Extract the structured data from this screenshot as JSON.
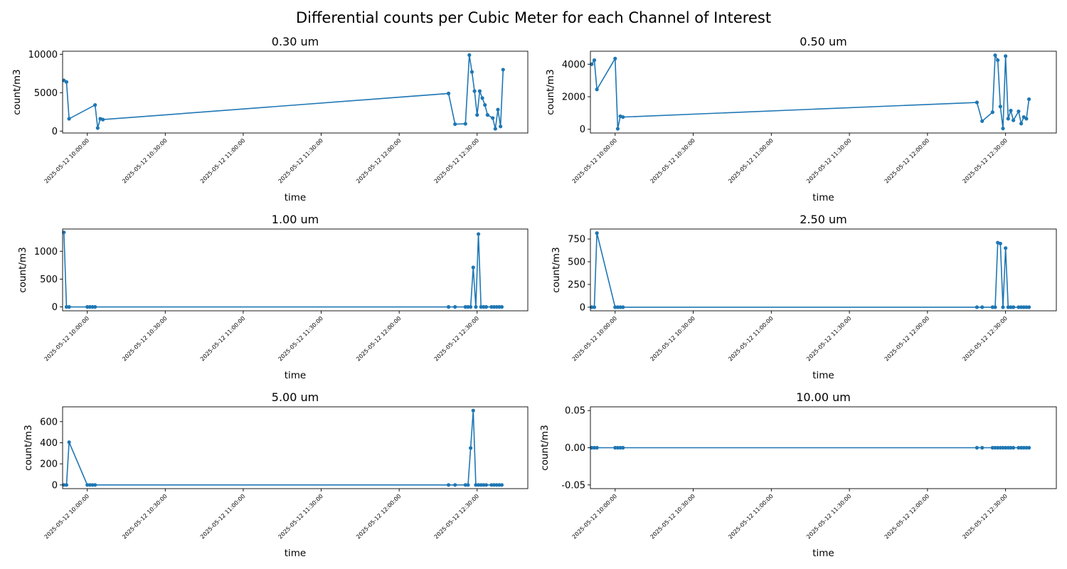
{
  "figure": {
    "suptitle": "Differential counts per Cubic Meter for each Channel of Interest"
  },
  "chart_data": [
    {
      "type": "line",
      "title": "0.30 um",
      "xlabel": "time",
      "ylabel": "count/m3",
      "color": "#1f77b4",
      "marker": "circle",
      "x_ticks": [
        "2025-05-12 10:00:00",
        "2025-05-12 10:30:00",
        "2025-05-12 11:00:00",
        "2025-05-12 11:30:00",
        "2025-05-12 12:00:00",
        "2025-05-12 12:30:00"
      ],
      "xlim": [
        "2025-05-12 09:50:30",
        "2025-05-12 12:49:30"
      ],
      "y_ticks": [
        0,
        5000,
        10000
      ],
      "ylim": [
        -250,
        10400
      ],
      "series": [
        {
          "x": [
            "2025-05-12 09:51:00",
            "2025-05-12 09:52:00",
            "2025-05-12 09:53:00",
            "2025-05-12 10:03:00",
            "2025-05-12 10:04:00",
            "2025-05-12 10:05:00",
            "2025-05-12 10:06:00",
            "2025-05-12 12:19:00",
            "2025-05-12 12:21:30",
            "2025-05-12 12:25:30",
            "2025-05-12 12:27:00",
            "2025-05-12 12:28:00",
            "2025-05-12 12:29:00",
            "2025-05-12 12:30:00",
            "2025-05-12 12:31:00",
            "2025-05-12 12:32:00",
            "2025-05-12 12:33:00",
            "2025-05-12 12:34:00",
            "2025-05-12 12:36:00",
            "2025-05-12 12:37:00",
            "2025-05-12 12:38:00",
            "2025-05-12 12:39:00",
            "2025-05-12 12:40:00"
          ],
          "y": [
            6600,
            6400,
            1600,
            3400,
            400,
            1600,
            1500,
            4900,
            900,
            950,
            9900,
            7700,
            5200,
            2100,
            5200,
            4300,
            3400,
            2100,
            1700,
            300,
            2800,
            600,
            8000
          ]
        }
      ]
    },
    {
      "type": "line",
      "title": "0.50 um",
      "xlabel": "time",
      "ylabel": "count/m3",
      "color": "#1f77b4",
      "marker": "circle",
      "x_ticks": [
        "2025-05-12 10:00:00",
        "2025-05-12 10:30:00",
        "2025-05-12 11:00:00",
        "2025-05-12 11:30:00",
        "2025-05-12 12:00:00",
        "2025-05-12 12:30:00"
      ],
      "xlim": [
        "2025-05-12 09:50:30",
        "2025-05-12 12:49:30"
      ],
      "y_ticks": [
        0,
        2000,
        4000
      ],
      "ylim": [
        -230,
        4800
      ],
      "series": [
        {
          "x": [
            "2025-05-12 09:51:00",
            "2025-05-12 09:52:00",
            "2025-05-12 09:53:00",
            "2025-05-12 10:00:00",
            "2025-05-12 10:01:00",
            "2025-05-12 10:02:00",
            "2025-05-12 10:03:00",
            "2025-05-12 12:19:00",
            "2025-05-12 12:21:00",
            "2025-05-12 12:25:00",
            "2025-05-12 12:26:00",
            "2025-05-12 12:27:00",
            "2025-05-12 12:28:00",
            "2025-05-12 12:29:00",
            "2025-05-12 12:30:00",
            "2025-05-12 12:31:00",
            "2025-05-12 12:32:00",
            "2025-05-12 12:33:00",
            "2025-05-12 12:35:00",
            "2025-05-12 12:36:00",
            "2025-05-12 12:37:00",
            "2025-05-12 12:38:00",
            "2025-05-12 12:39:00"
          ],
          "y": [
            4000,
            4250,
            2450,
            4350,
            30,
            800,
            750,
            1650,
            500,
            1050,
            4550,
            4250,
            1400,
            50,
            4500,
            650,
            1150,
            550,
            1100,
            350,
            750,
            650,
            1850
          ]
        }
      ]
    },
    {
      "type": "line",
      "title": "1.00 um",
      "xlabel": "time",
      "ylabel": "count/m3",
      "color": "#1f77b4",
      "marker": "circle",
      "x_ticks": [
        "2025-05-12 10:00:00",
        "2025-05-12 10:30:00",
        "2025-05-12 11:00:00",
        "2025-05-12 11:30:00",
        "2025-05-12 12:00:00",
        "2025-05-12 12:30:00"
      ],
      "xlim": [
        "2025-05-12 09:50:30",
        "2025-05-12 12:49:30"
      ],
      "y_ticks": [
        0,
        500,
        1000
      ],
      "ylim": [
        -70,
        1400
      ],
      "series": [
        {
          "x": [
            "2025-05-12 09:51:00",
            "2025-05-12 09:52:00",
            "2025-05-12 09:53:00",
            "2025-05-12 10:00:00",
            "2025-05-12 10:01:00",
            "2025-05-12 10:02:00",
            "2025-05-12 10:03:00",
            "2025-05-12 12:19:00",
            "2025-05-12 12:21:30",
            "2025-05-12 12:25:30",
            "2025-05-12 12:26:30",
            "2025-05-12 12:27:30",
            "2025-05-12 12:28:30",
            "2025-05-12 12:29:30",
            "2025-05-12 12:30:30",
            "2025-05-12 12:31:30",
            "2025-05-12 12:32:30",
            "2025-05-12 12:33:30",
            "2025-05-12 12:35:30",
            "2025-05-12 12:36:30",
            "2025-05-12 12:37:30",
            "2025-05-12 12:38:30",
            "2025-05-12 12:39:30"
          ],
          "y": [
            1340,
            0,
            0,
            0,
            0,
            0,
            0,
            0,
            0,
            0,
            0,
            0,
            710,
            0,
            1310,
            0,
            0,
            0,
            0,
            0,
            0,
            0,
            0
          ]
        }
      ]
    },
    {
      "type": "line",
      "title": "2.50 um",
      "xlabel": "time",
      "ylabel": "count/m3",
      "color": "#1f77b4",
      "marker": "circle",
      "x_ticks": [
        "2025-05-12 10:00:00",
        "2025-05-12 10:30:00",
        "2025-05-12 11:00:00",
        "2025-05-12 11:30:00",
        "2025-05-12 12:00:00",
        "2025-05-12 12:30:00"
      ],
      "xlim": [
        "2025-05-12 09:50:30",
        "2025-05-12 12:49:30"
      ],
      "y_ticks": [
        0,
        250,
        500,
        750
      ],
      "ylim": [
        -40,
        860
      ],
      "series": [
        {
          "x": [
            "2025-05-12 09:51:00",
            "2025-05-12 09:52:00",
            "2025-05-12 09:53:00",
            "2025-05-12 10:00:00",
            "2025-05-12 10:01:00",
            "2025-05-12 10:02:00",
            "2025-05-12 10:03:00",
            "2025-05-12 12:19:00",
            "2025-05-12 12:21:00",
            "2025-05-12 12:25:00",
            "2025-05-12 12:26:00",
            "2025-05-12 12:27:00",
            "2025-05-12 12:28:00",
            "2025-05-12 12:29:00",
            "2025-05-12 12:30:00",
            "2025-05-12 12:31:00",
            "2025-05-12 12:32:00",
            "2025-05-12 12:33:00",
            "2025-05-12 12:35:00",
            "2025-05-12 12:36:00",
            "2025-05-12 12:37:00",
            "2025-05-12 12:38:00",
            "2025-05-12 12:39:00"
          ],
          "y": [
            0,
            0,
            815,
            0,
            0,
            0,
            0,
            0,
            0,
            0,
            0,
            710,
            700,
            0,
            650,
            0,
            0,
            0,
            0,
            0,
            0,
            0,
            0
          ]
        }
      ]
    },
    {
      "type": "line",
      "title": "5.00 um",
      "xlabel": "time",
      "ylabel": "count/m3",
      "color": "#1f77b4",
      "marker": "circle",
      "x_ticks": [
        "2025-05-12 10:00:00",
        "2025-05-12 10:30:00",
        "2025-05-12 11:00:00",
        "2025-05-12 11:30:00",
        "2025-05-12 12:00:00",
        "2025-05-12 12:30:00"
      ],
      "xlim": [
        "2025-05-12 09:50:30",
        "2025-05-12 12:49:30"
      ],
      "y_ticks": [
        0,
        200,
        400,
        600
      ],
      "ylim": [
        -35,
        740
      ],
      "series": [
        {
          "x": [
            "2025-05-12 09:51:00",
            "2025-05-12 09:52:00",
            "2025-05-12 09:53:00",
            "2025-05-12 10:00:00",
            "2025-05-12 10:01:00",
            "2025-05-12 10:02:00",
            "2025-05-12 10:03:00",
            "2025-05-12 12:19:00",
            "2025-05-12 12:21:30",
            "2025-05-12 12:25:30",
            "2025-05-12 12:26:30",
            "2025-05-12 12:27:30",
            "2025-05-12 12:28:30",
            "2025-05-12 12:29:30",
            "2025-05-12 12:30:30",
            "2025-05-12 12:31:30",
            "2025-05-12 12:32:30",
            "2025-05-12 12:33:30",
            "2025-05-12 12:35:30",
            "2025-05-12 12:36:30",
            "2025-05-12 12:37:30",
            "2025-05-12 12:38:30",
            "2025-05-12 12:39:30"
          ],
          "y": [
            0,
            0,
            405,
            0,
            0,
            0,
            0,
            0,
            0,
            0,
            0,
            350,
            705,
            0,
            0,
            0,
            0,
            0,
            0,
            0,
            0,
            0,
            0
          ]
        }
      ]
    },
    {
      "type": "line",
      "title": "10.00 um",
      "xlabel": "time",
      "ylabel": "count/m3",
      "color": "#1f77b4",
      "marker": "circle",
      "x_ticks": [
        "2025-05-12 10:00:00",
        "2025-05-12 10:30:00",
        "2025-05-12 11:00:00",
        "2025-05-12 11:30:00",
        "2025-05-12 12:00:00",
        "2025-05-12 12:30:00"
      ],
      "xlim": [
        "2025-05-12 09:50:30",
        "2025-05-12 12:49:30"
      ],
      "y_ticks": [
        -0.05,
        0.0,
        0.05
      ],
      "ylim": [
        -0.055,
        0.055
      ],
      "series": [
        {
          "x": [
            "2025-05-12 09:51:00",
            "2025-05-12 09:52:00",
            "2025-05-12 09:53:00",
            "2025-05-12 10:00:00",
            "2025-05-12 10:01:00",
            "2025-05-12 10:02:00",
            "2025-05-12 10:03:00",
            "2025-05-12 12:19:00",
            "2025-05-12 12:21:00",
            "2025-05-12 12:25:00",
            "2025-05-12 12:26:00",
            "2025-05-12 12:27:00",
            "2025-05-12 12:28:00",
            "2025-05-12 12:29:00",
            "2025-05-12 12:30:00",
            "2025-05-12 12:31:00",
            "2025-05-12 12:32:00",
            "2025-05-12 12:33:00",
            "2025-05-12 12:35:00",
            "2025-05-12 12:36:00",
            "2025-05-12 12:37:00",
            "2025-05-12 12:38:00",
            "2025-05-12 12:39:00"
          ],
          "y": [
            0,
            0,
            0,
            0,
            0,
            0,
            0,
            0,
            0,
            0,
            0,
            0,
            0,
            0,
            0,
            0,
            0,
            0,
            0,
            0,
            0,
            0,
            0
          ]
        }
      ]
    }
  ]
}
